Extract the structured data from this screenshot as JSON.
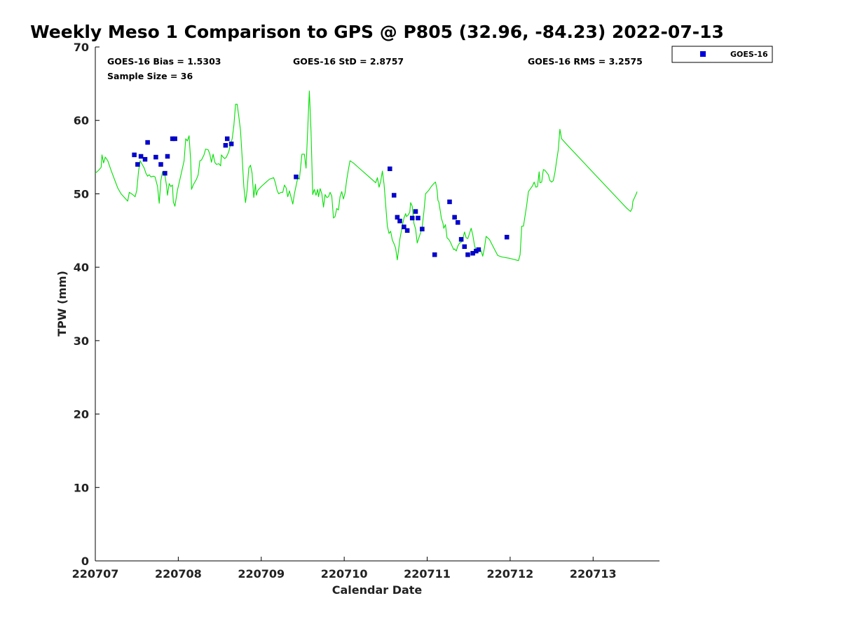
{
  "chart_data": {
    "type": "line",
    "title": "Weekly Meso 1 Comparison to GPS @ P805 (32.96, -84.23) 2022-07-13",
    "xlabel": "Calendar Date",
    "ylabel": "TPW (mm)",
    "xlim": [
      0,
      6.8
    ],
    "ylim": [
      0,
      70
    ],
    "x_ticks": [
      {
        "label": "220707",
        "day": 0
      },
      {
        "label": "220708",
        "day": 1
      },
      {
        "label": "220709",
        "day": 2
      },
      {
        "label": "220710",
        "day": 3
      },
      {
        "label": "220711",
        "day": 4
      },
      {
        "label": "220712",
        "day": 5
      },
      {
        "label": "220713",
        "day": 6
      }
    ],
    "y_ticks": [
      "0",
      "10",
      "20",
      "30",
      "40",
      "50",
      "60",
      "70"
    ],
    "grid": false,
    "legend_position": "outside-top-right",
    "stats": {
      "bias": "GOES-16 Bias = 1.5303",
      "std": "GOES-16 StD = 2.8757",
      "rms": "GOES-16 RMS = 3.2575",
      "sample": "Sample Size = 36"
    },
    "series": [
      {
        "kind": "line",
        "color": "#00e000",
        "points": [
          [
            0.0,
            52.8
          ],
          [
            0.04,
            53.2
          ],
          [
            0.07,
            53.6
          ],
          [
            0.08,
            55.3
          ],
          [
            0.1,
            54.2
          ],
          [
            0.12,
            55.0
          ],
          [
            0.15,
            54.5
          ],
          [
            0.19,
            53.2
          ],
          [
            0.23,
            52.0
          ],
          [
            0.27,
            50.8
          ],
          [
            0.31,
            50.0
          ],
          [
            0.39,
            49.0
          ],
          [
            0.41,
            50.2
          ],
          [
            0.45,
            49.9
          ],
          [
            0.48,
            49.6
          ],
          [
            0.5,
            50.5
          ],
          [
            0.52,
            53.0
          ],
          [
            0.54,
            54.5
          ],
          [
            0.57,
            53.9
          ],
          [
            0.59,
            53.5
          ],
          [
            0.61,
            52.8
          ],
          [
            0.63,
            52.4
          ],
          [
            0.65,
            52.6
          ],
          [
            0.67,
            52.3
          ],
          [
            0.7,
            52.4
          ],
          [
            0.72,
            52.3
          ],
          [
            0.75,
            51.0
          ],
          [
            0.77,
            48.7
          ],
          [
            0.79,
            51.8
          ],
          [
            0.81,
            53.0
          ],
          [
            0.84,
            52.5
          ],
          [
            0.86,
            51.0
          ],
          [
            0.87,
            49.8
          ],
          [
            0.89,
            51.4
          ],
          [
            0.91,
            51.0
          ],
          [
            0.93,
            51.2
          ],
          [
            0.94,
            48.9
          ],
          [
            0.96,
            48.3
          ],
          [
            0.99,
            50.5
          ],
          [
            1.02,
            52.0
          ],
          [
            1.07,
            54.5
          ],
          [
            1.09,
            57.5
          ],
          [
            1.11,
            57.2
          ],
          [
            1.13,
            57.9
          ],
          [
            1.15,
            54.5
          ],
          [
            1.16,
            50.6
          ],
          [
            1.18,
            51.2
          ],
          [
            1.22,
            52.0
          ],
          [
            1.24,
            52.6
          ],
          [
            1.26,
            54.5
          ],
          [
            1.28,
            54.6
          ],
          [
            1.31,
            55.3
          ],
          [
            1.33,
            56.1
          ],
          [
            1.36,
            56.0
          ],
          [
            1.38,
            55.4
          ],
          [
            1.4,
            54.3
          ],
          [
            1.42,
            55.4
          ],
          [
            1.44,
            54.3
          ],
          [
            1.46,
            54.0
          ],
          [
            1.49,
            54.1
          ],
          [
            1.51,
            53.8
          ],
          [
            1.52,
            55.3
          ],
          [
            1.54,
            55.0
          ],
          [
            1.56,
            54.8
          ],
          [
            1.58,
            55.0
          ],
          [
            1.6,
            55.5
          ],
          [
            1.61,
            55.8
          ],
          [
            1.63,
            56.8
          ],
          [
            1.65,
            57.5
          ],
          [
            1.67,
            59.3
          ],
          [
            1.69,
            62.2
          ],
          [
            1.71,
            62.2
          ],
          [
            1.73,
            60.5
          ],
          [
            1.75,
            58.6
          ],
          [
            1.77,
            55.0
          ],
          [
            1.79,
            51.0
          ],
          [
            1.81,
            48.8
          ],
          [
            1.83,
            50.5
          ],
          [
            1.85,
            53.5
          ],
          [
            1.87,
            53.9
          ],
          [
            1.89,
            52.8
          ],
          [
            1.91,
            49.5
          ],
          [
            1.93,
            51.3
          ],
          [
            1.94,
            49.8
          ],
          [
            1.96,
            50.5
          ],
          [
            2.0,
            51.0
          ],
          [
            2.05,
            51.5
          ],
          [
            2.1,
            52.0
          ],
          [
            2.15,
            52.2
          ],
          [
            2.17,
            51.5
          ],
          [
            2.19,
            50.5
          ],
          [
            2.21,
            50.0
          ],
          [
            2.24,
            50.2
          ],
          [
            2.26,
            50.2
          ],
          [
            2.28,
            51.2
          ],
          [
            2.3,
            50.8
          ],
          [
            2.32,
            49.6
          ],
          [
            2.34,
            50.4
          ],
          [
            2.36,
            49.5
          ],
          [
            2.38,
            48.6
          ],
          [
            2.4,
            50.0
          ],
          [
            2.42,
            51.1
          ],
          [
            2.44,
            52.2
          ],
          [
            2.46,
            52.0
          ],
          [
            2.49,
            55.4
          ],
          [
            2.52,
            55.4
          ],
          [
            2.54,
            53.5
          ],
          [
            2.58,
            64.0
          ],
          [
            2.6,
            58.5
          ],
          [
            2.62,
            49.9
          ],
          [
            2.64,
            50.6
          ],
          [
            2.66,
            49.8
          ],
          [
            2.68,
            50.6
          ],
          [
            2.69,
            49.6
          ],
          [
            2.71,
            50.7
          ],
          [
            2.73,
            50.0
          ],
          [
            2.75,
            48.2
          ],
          [
            2.77,
            49.9
          ],
          [
            2.79,
            49.5
          ],
          [
            2.81,
            49.6
          ],
          [
            2.83,
            50.2
          ],
          [
            2.85,
            49.7
          ],
          [
            2.87,
            46.7
          ],
          [
            2.89,
            46.9
          ],
          [
            2.91,
            48.0
          ],
          [
            2.93,
            47.8
          ],
          [
            2.95,
            49.6
          ],
          [
            2.97,
            50.3
          ],
          [
            2.99,
            49.3
          ],
          [
            3.01,
            50.1
          ],
          [
            3.03,
            51.9
          ],
          [
            3.05,
            53.3
          ],
          [
            3.07,
            54.5
          ],
          [
            3.11,
            54.2
          ],
          [
            3.2,
            53.3
          ],
          [
            3.3,
            52.3
          ],
          [
            3.38,
            51.5
          ],
          [
            3.4,
            52.2
          ],
          [
            3.42,
            50.9
          ],
          [
            3.44,
            51.7
          ],
          [
            3.46,
            53.1
          ],
          [
            3.48,
            51.3
          ],
          [
            3.5,
            48.5
          ],
          [
            3.52,
            45.6
          ],
          [
            3.54,
            44.6
          ],
          [
            3.56,
            44.9
          ],
          [
            3.58,
            43.7
          ],
          [
            3.6,
            43.2
          ],
          [
            3.62,
            42.6
          ],
          [
            3.64,
            41.0
          ],
          [
            3.66,
            42.8
          ],
          [
            3.67,
            43.8
          ],
          [
            3.7,
            45.6
          ],
          [
            3.72,
            46.7
          ],
          [
            3.74,
            47.3
          ],
          [
            3.75,
            46.9
          ],
          [
            3.77,
            47.1
          ],
          [
            3.79,
            47.5
          ],
          [
            3.8,
            48.8
          ],
          [
            3.82,
            48.3
          ],
          [
            3.84,
            46.0
          ],
          [
            3.86,
            45.2
          ],
          [
            3.88,
            43.3
          ],
          [
            3.9,
            44.0
          ],
          [
            3.92,
            44.7
          ],
          [
            3.94,
            45.5
          ],
          [
            3.96,
            47.5
          ],
          [
            3.98,
            50.0
          ],
          [
            4.02,
            50.5
          ],
          [
            4.05,
            51.0
          ],
          [
            4.08,
            51.4
          ],
          [
            4.1,
            51.6
          ],
          [
            4.12,
            50.5
          ],
          [
            4.13,
            49.1
          ],
          [
            4.14,
            48.9
          ],
          [
            4.16,
            47.5
          ],
          [
            4.17,
            46.7
          ],
          [
            4.19,
            46.0
          ],
          [
            4.2,
            45.3
          ],
          [
            4.22,
            45.8
          ],
          [
            4.24,
            44.0
          ],
          [
            4.26,
            43.8
          ],
          [
            4.28,
            43.4
          ],
          [
            4.3,
            42.9
          ],
          [
            4.32,
            42.4
          ],
          [
            4.33,
            42.5
          ],
          [
            4.35,
            42.2
          ],
          [
            4.37,
            42.9
          ],
          [
            4.39,
            43.3
          ],
          [
            4.41,
            43.4
          ],
          [
            4.43,
            43.9
          ],
          [
            4.45,
            44.8
          ],
          [
            4.47,
            44.0
          ],
          [
            4.49,
            43.9
          ],
          [
            4.51,
            44.6
          ],
          [
            4.53,
            45.3
          ],
          [
            4.55,
            44.4
          ],
          [
            4.57,
            43.0
          ],
          [
            4.59,
            42.2
          ],
          [
            4.61,
            42.1
          ],
          [
            4.63,
            42.6
          ],
          [
            4.65,
            42.2
          ],
          [
            4.67,
            41.5
          ],
          [
            4.69,
            42.6
          ],
          [
            4.71,
            44.2
          ],
          [
            4.73,
            44.0
          ],
          [
            4.75,
            43.8
          ],
          [
            4.8,
            42.7
          ],
          [
            4.85,
            41.6
          ],
          [
            4.9,
            41.4
          ],
          [
            5.0,
            41.2
          ],
          [
            5.1,
            40.9
          ],
          [
            5.12,
            41.7
          ],
          [
            5.14,
            45.6
          ],
          [
            5.16,
            45.6
          ],
          [
            5.18,
            47.0
          ],
          [
            5.2,
            48.5
          ],
          [
            5.22,
            50.3
          ],
          [
            5.27,
            51.1
          ],
          [
            5.29,
            51.6
          ],
          [
            5.31,
            50.9
          ],
          [
            5.33,
            51.0
          ],
          [
            5.35,
            53.0
          ],
          [
            5.36,
            51.5
          ],
          [
            5.38,
            51.6
          ],
          [
            5.4,
            53.3
          ],
          [
            5.42,
            53.2
          ],
          [
            5.44,
            52.9
          ],
          [
            5.46,
            52.6
          ],
          [
            5.48,
            51.8
          ],
          [
            5.5,
            51.6
          ],
          [
            5.52,
            51.8
          ],
          [
            5.54,
            52.9
          ],
          [
            5.56,
            54.5
          ],
          [
            5.58,
            56.0
          ],
          [
            5.6,
            58.8
          ],
          [
            5.62,
            57.5
          ],
          [
            5.7,
            56.5
          ],
          [
            5.8,
            55.3
          ],
          [
            5.9,
            54.1
          ],
          [
            6.0,
            52.9
          ],
          [
            6.1,
            51.7
          ],
          [
            6.2,
            50.5
          ],
          [
            6.3,
            49.3
          ],
          [
            6.4,
            48.1
          ],
          [
            6.45,
            47.6
          ],
          [
            6.47,
            48.0
          ],
          [
            6.48,
            49.0
          ],
          [
            6.5,
            49.5
          ],
          [
            6.52,
            50.0
          ],
          [
            6.53,
            50.3
          ]
        ]
      },
      {
        "kind": "scatter",
        "name": "GOES-16",
        "color": "#0000dd",
        "points": [
          [
            0.47,
            55.3
          ],
          [
            0.51,
            54.0
          ],
          [
            0.55,
            55.1
          ],
          [
            0.6,
            54.7
          ],
          [
            0.63,
            57.0
          ],
          [
            0.73,
            55.0
          ],
          [
            0.79,
            54.0
          ],
          [
            0.84,
            52.8
          ],
          [
            0.87,
            55.1
          ],
          [
            0.93,
            57.5
          ],
          [
            0.96,
            57.5
          ],
          [
            1.57,
            56.6
          ],
          [
            1.59,
            57.5
          ],
          [
            1.64,
            56.8
          ],
          [
            2.42,
            52.3
          ],
          [
            3.55,
            53.4
          ],
          [
            3.6,
            49.8
          ],
          [
            3.64,
            46.8
          ],
          [
            3.67,
            46.3
          ],
          [
            3.72,
            45.5
          ],
          [
            3.76,
            45.0
          ],
          [
            3.82,
            46.7
          ],
          [
            3.86,
            47.6
          ],
          [
            3.89,
            46.7
          ],
          [
            3.94,
            45.2
          ],
          [
            4.09,
            41.7
          ],
          [
            4.27,
            48.9
          ],
          [
            4.33,
            46.8
          ],
          [
            4.37,
            46.1
          ],
          [
            4.41,
            43.8
          ],
          [
            4.45,
            42.8
          ],
          [
            4.49,
            41.7
          ],
          [
            4.55,
            41.9
          ],
          [
            4.59,
            42.2
          ],
          [
            4.62,
            42.4
          ],
          [
            4.96,
            44.1
          ]
        ]
      }
    ]
  }
}
